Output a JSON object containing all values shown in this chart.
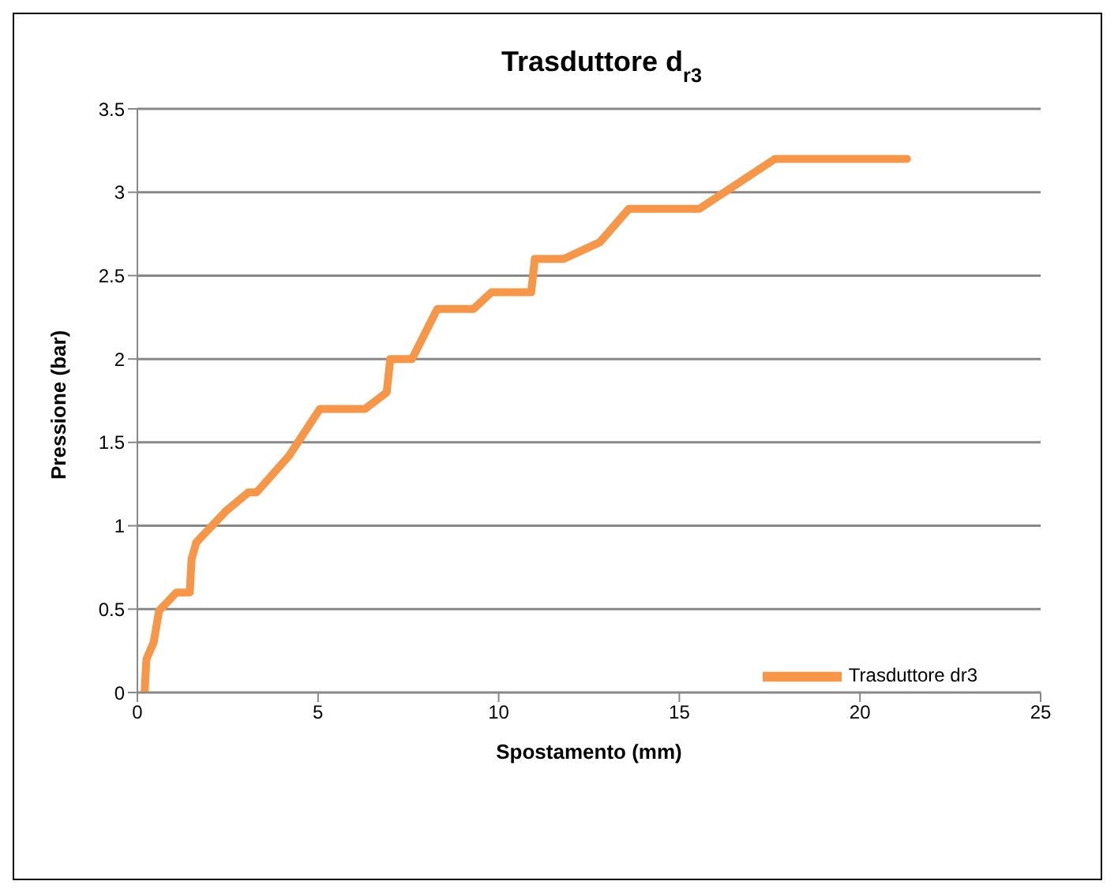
{
  "chart_data": {
    "type": "line",
    "title": "Trasduttore d$_{r3}$",
    "xlabel": "Spostamento  (mm)",
    "ylabel": "Pressione (bar)",
    "x": [
      0.2,
      0.25,
      0.45,
      0.6,
      1.08,
      1.45,
      1.5,
      1.63,
      2.46,
      3.07,
      3.3,
      4.2,
      5.05,
      6.3,
      6.9,
      7.0,
      7.6,
      8.3,
      9.3,
      9.8,
      10.9,
      11.0,
      11.8,
      12.8,
      13.6,
      15.55,
      17.65,
      21.3
    ],
    "series": [
      {
        "name": "Trasduttore dr3",
        "color": "#f79646",
        "values": [
          0,
          0.2,
          0.3,
          0.49,
          0.6,
          0.6,
          0.8,
          0.9,
          1.09,
          1.2,
          1.2,
          1.42,
          1.7,
          1.7,
          1.8,
          2.0,
          2.0,
          2.3,
          2.3,
          2.4,
          2.4,
          2.6,
          2.6,
          2.7,
          2.9,
          2.9,
          3.2,
          3.2
        ]
      }
    ],
    "xlim": [
      0,
      25
    ],
    "xticks": [
      0,
      5,
      10,
      15,
      20,
      25
    ],
    "ylim": [
      0,
      3.5
    ],
    "yticks": [
      0,
      0.5,
      1,
      1.5,
      2,
      2.5,
      3,
      3.5
    ],
    "grid": "y",
    "legend": "bottom right",
    "marker": "none",
    "line_style": "solid"
  }
}
